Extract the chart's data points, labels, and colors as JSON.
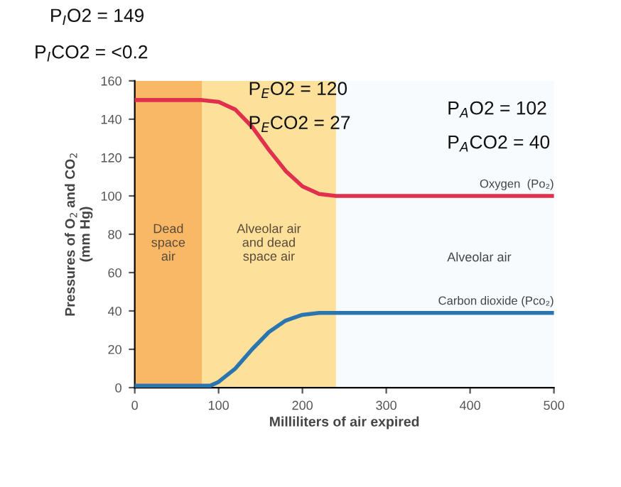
{
  "chart_data": {
    "type": "line",
    "xlabel": "Milliliters of air expired",
    "ylabel": "Pressures of O$_{2}$ and CO$_{2}$\n(mm Hg)",
    "xlim": [
      0,
      500
    ],
    "xticks": [
      0,
      100,
      200,
      300,
      400,
      500
    ],
    "ylim": [
      0,
      160
    ],
    "yticks": [
      0,
      20,
      40,
      60,
      80,
      100,
      120,
      140,
      160
    ],
    "grid": false,
    "legend": false,
    "marker": "none",
    "line_style": "solid",
    "bands": [
      {
        "axis": "x",
        "from": 0,
        "to": 80,
        "label": "Dead\nspace\nair",
        "color": "#f9b866"
      },
      {
        "axis": "x",
        "from": 80,
        "to": 240,
        "label": "Alveolar air\nand dead\nspace air",
        "color": "#fde09a"
      }
    ],
    "series": [
      {
        "name": "Oxygen  (Po₂)",
        "color": "#e0304e",
        "x": [
          0,
          60,
          80,
          100,
          120,
          140,
          160,
          180,
          200,
          220,
          240,
          300,
          500
        ],
        "values": [
          150,
          150,
          150,
          149,
          145,
          136,
          124,
          113,
          105,
          101,
          100,
          100,
          100
        ]
      },
      {
        "name": "Carbon dioxide (Pco₂)",
        "color": "#2a74b0",
        "x": [
          0,
          60,
          90,
          100,
          120,
          140,
          160,
          180,
          200,
          220,
          240,
          300,
          500
        ],
        "values": [
          1,
          1,
          1,
          3,
          10,
          20,
          29,
          35,
          38,
          39,
          39,
          39,
          39
        ]
      }
    ],
    "annotations": [
      "P$_{I}$O2 = 149",
      "P$_{I}$CO2 = <0.2",
      "P$_{E}$O2 = 120",
      "P$_{E}$CO2 = 27",
      "P$_{A}$O2 = 102",
      "P$_{A}$CO2 = 40",
      "Alveolar air"
    ]
  }
}
